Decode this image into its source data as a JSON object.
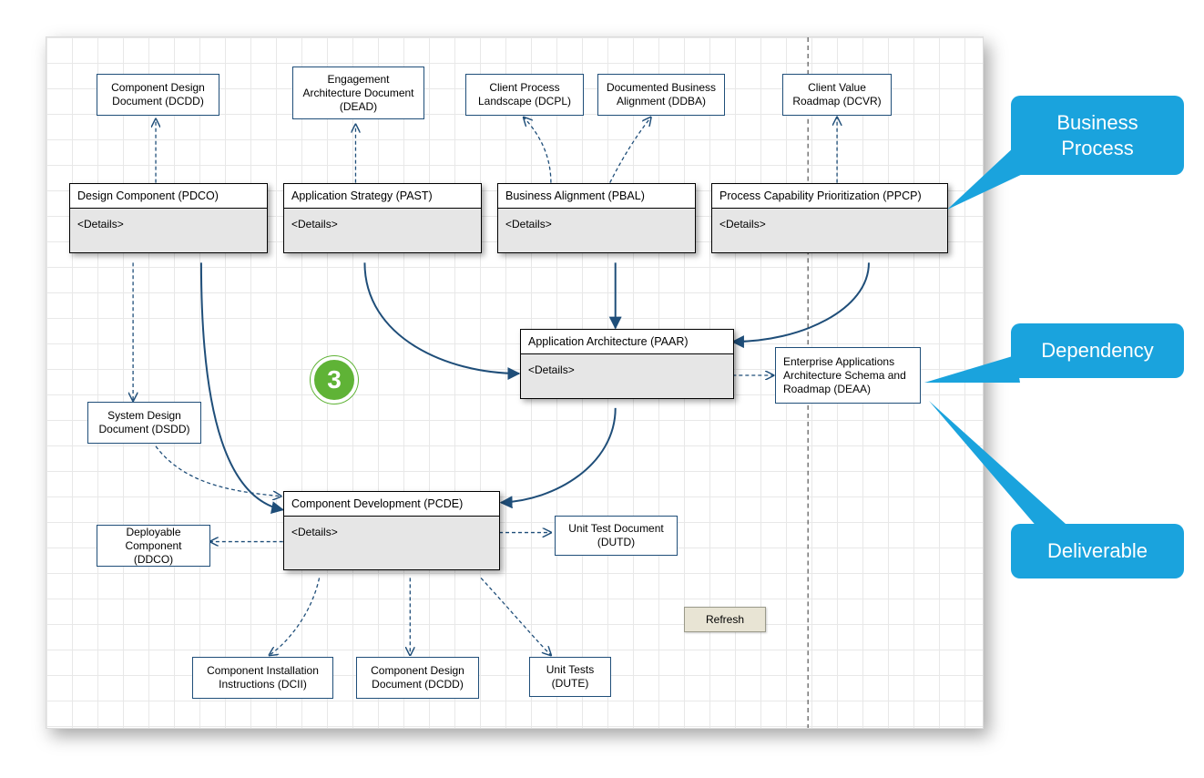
{
  "colors": {
    "grid": "#e8e8e8",
    "shadow": "rgba(0,0,0,0.35)",
    "procBorder": "#000000",
    "procBody": "#e6e6e6",
    "delivBorder": "#1f4e79",
    "solidArrow": "#1f4e79",
    "dashedArrow": "#1f4e79",
    "badgeFill": "#5fb336",
    "badgeRing": "#ffffff",
    "callout": "#1aa3dd",
    "refreshBg": "#e8e4d4"
  },
  "badge": {
    "text": "3"
  },
  "refresh": {
    "label": "Refresh"
  },
  "details": "<Details>",
  "callouts": {
    "bp": "Business\nProcess",
    "dep": "Dependency",
    "del": "Deliverable"
  },
  "deliverables": {
    "dcdd": "Component Design Document (DCDD)",
    "dead": "Engagement Architecture Document (DEAD)",
    "dcpl": "Client Process Landscape (DCPL)",
    "ddba": "Documented Business Alignment (DDBA)",
    "dcvr": "Client Value Roadmap (DCVR)",
    "dsdd": "System Design Document (DSDD)",
    "ddco": "Deployable Component (DDCO)",
    "dcii": "Component Installation Instructions (DCII)",
    "dcdd2": "Component Design Document (DCDD)",
    "dute": "Unit Tests (DUTE)",
    "dutd": "Unit Test Document (DUTD)",
    "deaa": "Enterprise Applications Architecture Schema and Roadmap (DEAA)"
  },
  "processes": {
    "pdco": "Design Component (PDCO)",
    "past": "Application Strategy (PAST)",
    "pbal": "Business Alignment (PBAL)",
    "ppcp": "Process Capability Prioritization (PPCP)",
    "paar": "Application Architecture (PAAR)",
    "pcde": "Component Development (PCDE)"
  }
}
